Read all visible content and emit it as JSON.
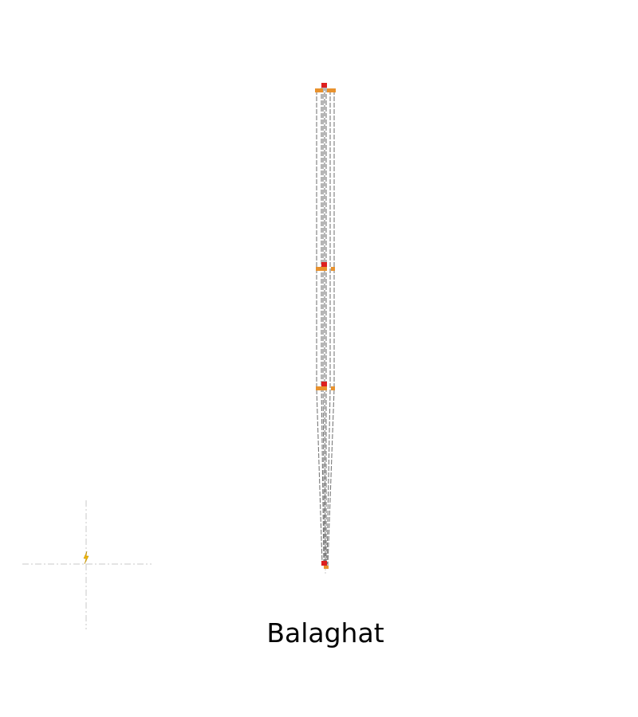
{
  "diagram": {
    "caption": "Balaghat"
  },
  "colors": {
    "wire": "#7a7a7a",
    "crossarm": "#e8922e",
    "insulator": "#dd1f1f",
    "crosshair": "#c8c8c8",
    "marker": "#f2b600"
  }
}
